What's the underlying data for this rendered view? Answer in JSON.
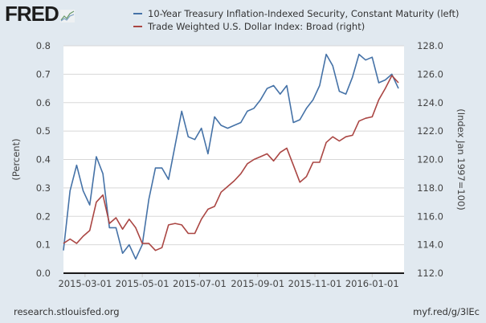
{
  "header": {
    "logo_text": "FRED",
    "logo_icon": "trend-lines-icon"
  },
  "footer": {
    "source": "research.stlouisfed.org",
    "short_link": "myf.red/g/3lEc"
  },
  "chart_data": {
    "type": "line",
    "title": "",
    "legend_placement": "top",
    "legend": [
      {
        "label": "10-Year Treasury Inflation-Indexed Security, Constant Maturity (left)",
        "color": "#4572a7"
      },
      {
        "label": "Trade Weighted U.S. Dollar Index: Broad (right)",
        "color": "#aa4643"
      }
    ],
    "xlabel": "",
    "ylabel_left": "(Percent)",
    "ylabel_right": "(Index Jan 1997=100)",
    "grid": true,
    "x_range": [
      "2015-02-06",
      "2016-02-04"
    ],
    "x_ticks": [
      "2015-03-01",
      "2015-05-01",
      "2015-07-01",
      "2015-09-01",
      "2015-11-01",
      "2016-01-01"
    ],
    "y_left": {
      "min": 0.0,
      "max": 0.8,
      "ticks": [
        "0.0",
        "0.1",
        "0.2",
        "0.3",
        "0.4",
        "0.5",
        "0.6",
        "0.7",
        "0.8"
      ]
    },
    "y_right": {
      "min": 112.0,
      "max": 128.0,
      "ticks": [
        "112.0",
        "114.0",
        "116.0",
        "118.0",
        "120.0",
        "122.0",
        "124.0",
        "126.0",
        "128.0"
      ]
    },
    "x_start": "2015-02-06",
    "x_step_days": 7,
    "series": [
      {
        "name": "10-Year Treasury Inflation-Indexed Security, Constant Maturity",
        "axis": "left",
        "color": "#4572a7",
        "values": [
          0.08,
          0.29,
          0.38,
          0.29,
          0.24,
          0.41,
          0.35,
          0.16,
          0.16,
          0.07,
          0.1,
          0.05,
          0.1,
          0.26,
          0.37,
          0.37,
          0.33,
          0.45,
          0.57,
          0.48,
          0.47,
          0.51,
          0.42,
          0.55,
          0.52,
          0.51,
          0.52,
          0.53,
          0.57,
          0.58,
          0.61,
          0.65,
          0.66,
          0.63,
          0.66,
          0.53,
          0.54,
          0.58,
          0.61,
          0.66,
          0.77,
          0.73,
          0.64,
          0.63,
          0.69,
          0.77,
          0.75,
          0.76,
          0.67,
          0.68,
          0.7,
          0.65
        ]
      },
      {
        "name": "Trade Weighted U.S. Dollar Index: Broad",
        "axis": "right",
        "color": "#aa4643",
        "values": [
          114.1,
          114.4,
          114.1,
          114.6,
          115.0,
          117.0,
          117.5,
          115.5,
          115.9,
          115.1,
          115.8,
          115.2,
          114.1,
          114.1,
          113.6,
          113.8,
          115.4,
          115.5,
          115.4,
          114.8,
          114.8,
          115.8,
          116.5,
          116.7,
          117.7,
          118.1,
          118.5,
          119.0,
          119.7,
          120.0,
          120.2,
          120.4,
          119.9,
          120.5,
          120.8,
          119.6,
          118.4,
          118.8,
          119.8,
          119.8,
          121.2,
          121.6,
          121.3,
          121.6,
          121.7,
          122.7,
          122.9,
          123.0,
          124.2,
          125.0,
          125.9,
          125.4
        ]
      }
    ]
  }
}
